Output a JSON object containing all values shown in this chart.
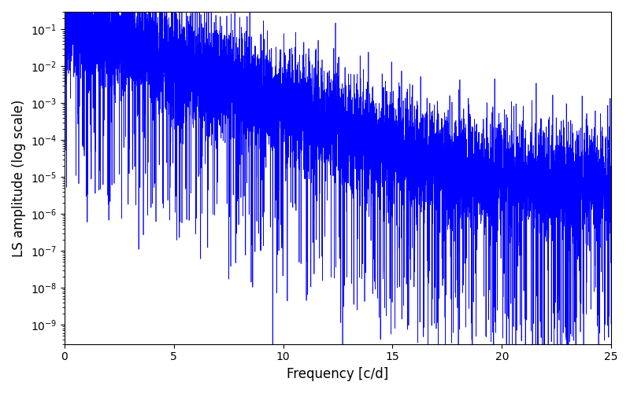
{
  "title": "",
  "xlabel": "Frequency [c/d]",
  "ylabel": "LS amplitude (log scale)",
  "line_color": "#0000ff",
  "xlim": [
    0,
    25
  ],
  "ylim": [
    3e-10,
    0.3
  ],
  "background_color": "#ffffff",
  "figsize": [
    8.0,
    5.0
  ],
  "dpi": 100,
  "n_points": 8000,
  "freq_max": 25.0,
  "seed": 7,
  "peak_amp": 0.22,
  "peak_freq": 0.35,
  "noise_std_log": 1.8,
  "base_level": 5e-06,
  "decay_rate": 0.55
}
